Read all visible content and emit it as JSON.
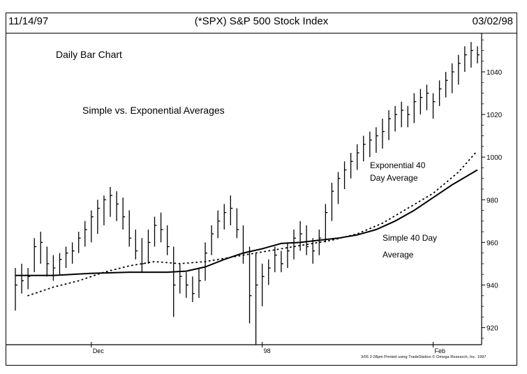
{
  "header": {
    "start_date": "11/14/97",
    "title": "(*SPX) S&P 500 Stock Index",
    "end_date": "03/02/98"
  },
  "annotations": {
    "chart_kind": "Daily Bar Chart",
    "subtitle": "Simple vs. Exponential Averages",
    "ema_label_line1": "Exponential 40",
    "ema_label_line2": "Day Average",
    "sma_label_line1": "Simple 40 Day",
    "sma_label_line2": "Average"
  },
  "footer": {
    "credit": "3/05 2:28pm Printed using TradeStation © Omega Research, Inc. 1997"
  },
  "colors": {
    "ink": "#000000",
    "background": "#ffffff"
  },
  "chart_data": {
    "type": "bar",
    "subtype": "ohlc-daily",
    "title": "(*SPX) S&P 500 Stock Index",
    "xlabel": "",
    "ylabel": "",
    "ylim": [
      912,
      1058
    ],
    "y_ticks": [
      920,
      940,
      960,
      980,
      1000,
      1020,
      1040
    ],
    "y_axis_side": "right",
    "x_tick_labels": [
      {
        "label": "Dec",
        "bar_index": 12
      },
      {
        "label": "98",
        "bar_index": 39
      },
      {
        "label": "Feb",
        "bar_index": 66
      }
    ],
    "grid": false,
    "bars": [
      {
        "h": 948,
        "l": 928,
        "c": 940
      },
      {
        "h": 950,
        "l": 936,
        "c": 942
      },
      {
        "h": 948,
        "l": 938,
        "c": 944
      },
      {
        "h": 962,
        "l": 946,
        "c": 958
      },
      {
        "h": 965,
        "l": 950,
        "c": 960
      },
      {
        "h": 958,
        "l": 944,
        "c": 950
      },
      {
        "h": 954,
        "l": 942,
        "c": 948
      },
      {
        "h": 955,
        "l": 945,
        "c": 952
      },
      {
        "h": 958,
        "l": 948,
        "c": 955
      },
      {
        "h": 960,
        "l": 950,
        "c": 956
      },
      {
        "h": 965,
        "l": 955,
        "c": 962
      },
      {
        "h": 970,
        "l": 958,
        "c": 966
      },
      {
        "h": 975,
        "l": 960,
        "c": 972
      },
      {
        "h": 980,
        "l": 964,
        "c": 976
      },
      {
        "h": 982,
        "l": 968,
        "c": 980
      },
      {
        "h": 986,
        "l": 972,
        "c": 982
      },
      {
        "h": 984,
        "l": 970,
        "c": 978
      },
      {
        "h": 981,
        "l": 966,
        "c": 972
      },
      {
        "h": 975,
        "l": 958,
        "c": 962
      },
      {
        "h": 966,
        "l": 952,
        "c": 956
      },
      {
        "h": 962,
        "l": 946,
        "c": 950
      },
      {
        "h": 966,
        "l": 950,
        "c": 960
      },
      {
        "h": 972,
        "l": 958,
        "c": 968
      },
      {
        "h": 974,
        "l": 960,
        "c": 966
      },
      {
        "h": 968,
        "l": 954,
        "c": 958
      },
      {
        "h": 958,
        "l": 925,
        "c": 940
      },
      {
        "h": 950,
        "l": 936,
        "c": 944
      },
      {
        "h": 946,
        "l": 934,
        "c": 940
      },
      {
        "h": 944,
        "l": 932,
        "c": 936
      },
      {
        "h": 948,
        "l": 934,
        "c": 942
      },
      {
        "h": 960,
        "l": 942,
        "c": 955
      },
      {
        "h": 968,
        "l": 954,
        "c": 964
      },
      {
        "h": 975,
        "l": 962,
        "c": 970
      },
      {
        "h": 978,
        "l": 966,
        "c": 974
      },
      {
        "h": 982,
        "l": 968,
        "c": 976
      },
      {
        "h": 976,
        "l": 962,
        "c": 966
      },
      {
        "h": 968,
        "l": 950,
        "c": 955
      },
      {
        "h": 958,
        "l": 922,
        "c": 935
      },
      {
        "h": 955,
        "l": 912,
        "c": 940
      },
      {
        "h": 950,
        "l": 930,
        "c": 944
      },
      {
        "h": 952,
        "l": 940,
        "c": 948
      },
      {
        "h": 958,
        "l": 946,
        "c": 954
      },
      {
        "h": 956,
        "l": 946,
        "c": 950
      },
      {
        "h": 960,
        "l": 948,
        "c": 956
      },
      {
        "h": 966,
        "l": 952,
        "c": 962
      },
      {
        "h": 970,
        "l": 956,
        "c": 964
      },
      {
        "h": 968,
        "l": 954,
        "c": 958
      },
      {
        "h": 962,
        "l": 950,
        "c": 956
      },
      {
        "h": 966,
        "l": 954,
        "c": 962
      },
      {
        "h": 978,
        "l": 960,
        "c": 974
      },
      {
        "h": 988,
        "l": 970,
        "c": 984
      },
      {
        "h": 993,
        "l": 978,
        "c": 990
      },
      {
        "h": 998,
        "l": 985,
        "c": 994
      },
      {
        "h": 1002,
        "l": 990,
        "c": 998
      },
      {
        "h": 1006,
        "l": 994,
        "c": 1002
      },
      {
        "h": 1010,
        "l": 998,
        "c": 1006
      },
      {
        "h": 1012,
        "l": 1000,
        "c": 1008
      },
      {
        "h": 1014,
        "l": 1002,
        "c": 1010
      },
      {
        "h": 1018,
        "l": 1004,
        "c": 1012
      },
      {
        "h": 1022,
        "l": 1008,
        "c": 1018
      },
      {
        "h": 1024,
        "l": 1012,
        "c": 1020
      },
      {
        "h": 1026,
        "l": 1014,
        "c": 1022
      },
      {
        "h": 1024,
        "l": 1014,
        "c": 1020
      },
      {
        "h": 1030,
        "l": 1016,
        "c": 1026
      },
      {
        "h": 1032,
        "l": 1020,
        "c": 1028
      },
      {
        "h": 1034,
        "l": 1022,
        "c": 1030
      },
      {
        "h": 1030,
        "l": 1018,
        "c": 1026
      },
      {
        "h": 1036,
        "l": 1024,
        "c": 1032
      },
      {
        "h": 1040,
        "l": 1028,
        "c": 1036
      },
      {
        "h": 1044,
        "l": 1030,
        "c": 1040
      },
      {
        "h": 1048,
        "l": 1034,
        "c": 1044
      },
      {
        "h": 1052,
        "l": 1040,
        "c": 1048
      },
      {
        "h": 1054,
        "l": 1042,
        "c": 1050
      },
      {
        "h": 1052,
        "l": 1044,
        "c": 1048
      }
    ],
    "series": [
      {
        "name": "Simple 40 Day Average",
        "style": "solid",
        "values": [
          [
            0,
            944.5
          ],
          [
            6,
            944.5
          ],
          [
            12,
            945.5
          ],
          [
            18,
            946
          ],
          [
            24,
            946
          ],
          [
            27,
            946.5
          ],
          [
            30,
            948.5
          ],
          [
            33,
            952
          ],
          [
            36,
            955
          ],
          [
            39,
            957
          ],
          [
            42,
            959.5
          ],
          [
            45,
            960
          ],
          [
            48,
            961
          ],
          [
            51,
            962
          ],
          [
            54,
            963.5
          ],
          [
            57,
            966
          ],
          [
            60,
            970
          ],
          [
            63,
            975
          ],
          [
            66,
            981
          ],
          [
            69,
            987
          ],
          [
            73,
            994
          ]
        ]
      },
      {
        "name": "Exponential 40 Day Average",
        "style": "dotted",
        "values": [
          [
            2,
            935
          ],
          [
            6,
            939
          ],
          [
            10,
            942
          ],
          [
            14,
            946
          ],
          [
            18,
            949
          ],
          [
            22,
            951
          ],
          [
            26,
            950
          ],
          [
            30,
            951
          ],
          [
            34,
            953
          ],
          [
            38,
            955
          ],
          [
            42,
            957
          ],
          [
            46,
            959
          ],
          [
            50,
            961
          ],
          [
            54,
            964
          ],
          [
            58,
            969
          ],
          [
            62,
            976
          ],
          [
            66,
            983
          ],
          [
            70,
            993
          ],
          [
            73,
            1003
          ]
        ]
      }
    ]
  }
}
